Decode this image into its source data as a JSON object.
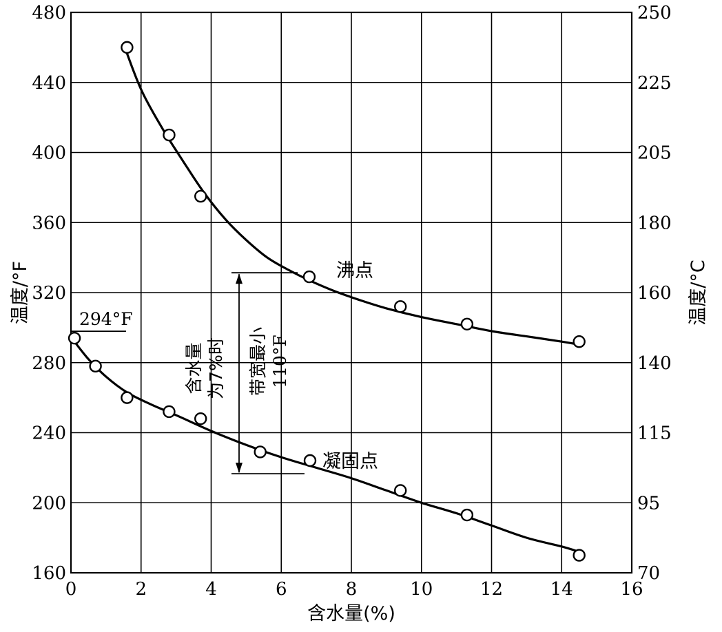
{
  "chart_data": {
    "type": "scatter",
    "xlabel": "含水量(%)",
    "ylabel_left": "温度/°F",
    "ylabel_right": "温度/°C",
    "xlim": [
      0,
      16
    ],
    "ylim_left": [
      160,
      480
    ],
    "x_ticks": [
      "0",
      "2",
      "4",
      "6",
      "8",
      "10",
      "12",
      "14",
      "16"
    ],
    "y_left_ticks": [
      "160",
      "200",
      "240",
      "280",
      "320",
      "360",
      "400",
      "440",
      "480"
    ],
    "y_right_ticks": [
      {
        "label": "70",
        "value_f": 160
      },
      {
        "label": "95",
        "value_f": 200
      },
      {
        "label": "115",
        "value_f": 240
      },
      {
        "label": "140",
        "value_f": 280
      },
      {
        "label": "160",
        "value_f": 320
      },
      {
        "label": "180",
        "value_f": 360
      },
      {
        "label": "205",
        "value_f": 400
      },
      {
        "label": "225",
        "value_f": 440
      },
      {
        "label": "250",
        "value_f": 480
      }
    ],
    "grid": true,
    "series": [
      {
        "name": "沸点",
        "points": [
          [
            1.6,
            460
          ],
          [
            2.8,
            410
          ],
          [
            3.7,
            375
          ],
          [
            6.8,
            329
          ],
          [
            9.4,
            312
          ],
          [
            11.3,
            302
          ],
          [
            14.5,
            292
          ]
        ],
        "curve": [
          [
            1.5,
            462
          ],
          [
            2.0,
            436
          ],
          [
            2.6,
            414
          ],
          [
            3.2,
            395
          ],
          [
            3.8,
            377
          ],
          [
            4.4,
            362
          ],
          [
            5.0,
            350
          ],
          [
            5.6,
            340
          ],
          [
            6.2,
            333
          ],
          [
            6.8,
            327
          ],
          [
            7.5,
            321
          ],
          [
            8.2,
            316
          ],
          [
            9.0,
            311
          ],
          [
            10.0,
            306
          ],
          [
            11.0,
            302
          ],
          [
            12.0,
            298
          ],
          [
            13.0,
            295
          ],
          [
            14.0,
            292
          ],
          [
            14.6,
            290
          ]
        ]
      },
      {
        "name": "凝固点",
        "points": [
          [
            0.1,
            294
          ],
          [
            0.7,
            278
          ],
          [
            1.6,
            260
          ],
          [
            2.8,
            252
          ],
          [
            3.7,
            248
          ],
          [
            5.4,
            229
          ],
          [
            9.4,
            207
          ],
          [
            11.3,
            193
          ],
          [
            14.5,
            170
          ]
        ],
        "curve": [
          [
            0.1,
            292
          ],
          [
            0.5,
            282
          ],
          [
            1.0,
            272
          ],
          [
            1.6,
            263
          ],
          [
            2.3,
            256
          ],
          [
            3.0,
            250
          ],
          [
            4.0,
            241
          ],
          [
            5.0,
            233
          ],
          [
            6.0,
            226
          ],
          [
            7.0,
            220
          ],
          [
            8.0,
            214
          ],
          [
            9.0,
            207
          ],
          [
            10.0,
            200
          ],
          [
            11.0,
            194
          ],
          [
            12.0,
            187
          ],
          [
            13.0,
            180
          ],
          [
            14.0,
            175
          ],
          [
            14.5,
            172
          ]
        ]
      }
    ],
    "annotations": {
      "boil_label": "沸点",
      "freeze_label": "凝固点",
      "label_294": "294°F",
      "label_294_value": 294,
      "moisture_note": [
        "含水量",
        "为7%时"
      ],
      "band_note": [
        "带宽最小",
        "110°F"
      ],
      "band_top": 327,
      "band_bottom": 215
    }
  }
}
